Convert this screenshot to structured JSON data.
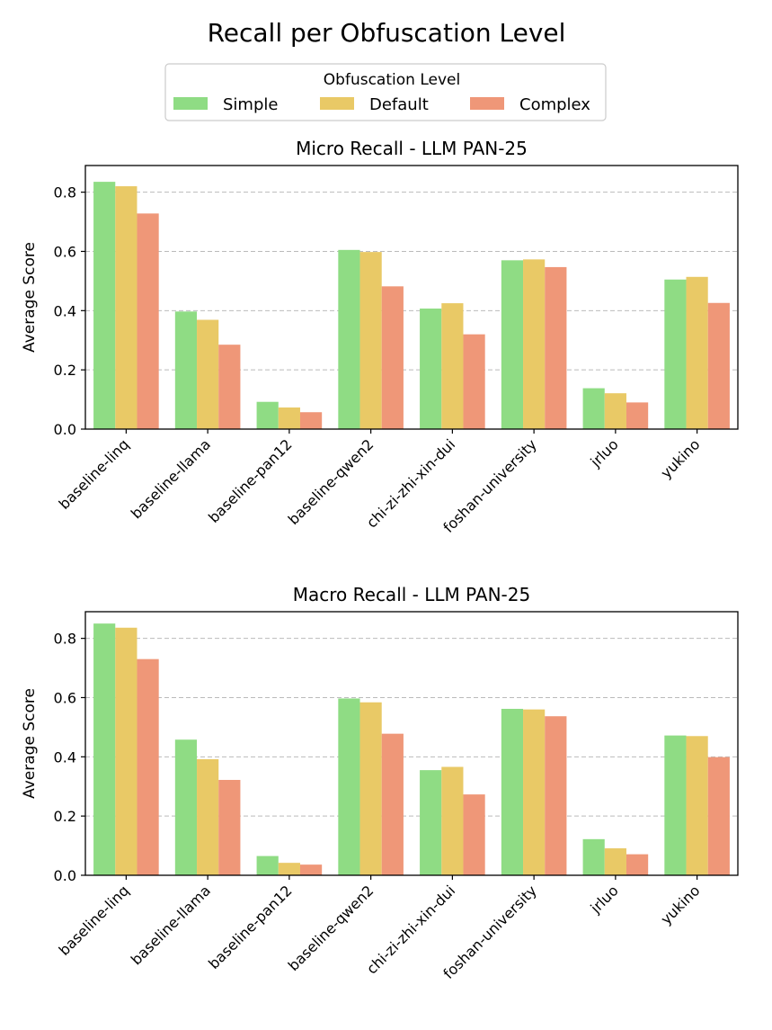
{
  "suptitle": "Recall per Obfuscation Level",
  "legend": {
    "title": "Obfuscation Level",
    "entries": [
      "Simple",
      "Default",
      "Complex"
    ]
  },
  "colors": {
    "Simple": "#8fdc84",
    "Default": "#e9c966",
    "Complex": "#ef9778",
    "grid": "#bbbbbb"
  },
  "chart_data": [
    {
      "type": "bar",
      "title": "Micro Recall - LLM PAN-25",
      "xlabel": "",
      "ylabel": "Average Score",
      "ylim": [
        0,
        0.89
      ],
      "yticks": [
        "0.0",
        "0.2",
        "0.4",
        "0.6",
        "0.8"
      ],
      "grid": "y-dashed",
      "categories": [
        "baseline-linq",
        "baseline-llama",
        "baseline-pan12",
        "baseline-qwen2",
        "chi-zi-zhi-xin-dui",
        "foshan-university",
        "jrluo",
        "yukino"
      ],
      "series": [
        {
          "name": "Simple",
          "values": [
            0.835,
            0.397,
            0.092,
            0.605,
            0.407,
            0.57,
            0.138,
            0.505
          ]
        },
        {
          "name": "Default",
          "values": [
            0.82,
            0.369,
            0.073,
            0.598,
            0.425,
            0.573,
            0.121,
            0.514
          ]
        },
        {
          "name": "Complex",
          "values": [
            0.728,
            0.285,
            0.057,
            0.482,
            0.32,
            0.547,
            0.09,
            0.426
          ]
        }
      ]
    },
    {
      "type": "bar",
      "title": "Macro Recall - LLM PAN-25",
      "xlabel": "",
      "ylabel": "Average Score",
      "ylim": [
        0,
        0.89
      ],
      "yticks": [
        "0.0",
        "0.2",
        "0.4",
        "0.6",
        "0.8"
      ],
      "grid": "y-dashed",
      "categories": [
        "baseline-linq",
        "baseline-llama",
        "baseline-pan12",
        "baseline-qwen2",
        "chi-zi-zhi-xin-dui",
        "foshan-university",
        "jrluo",
        "yukino"
      ],
      "series": [
        {
          "name": "Simple",
          "values": [
            0.85,
            0.458,
            0.065,
            0.597,
            0.355,
            0.562,
            0.122,
            0.472
          ]
        },
        {
          "name": "Default",
          "values": [
            0.836,
            0.392,
            0.042,
            0.584,
            0.366,
            0.56,
            0.091,
            0.47
          ]
        },
        {
          "name": "Complex",
          "values": [
            0.73,
            0.322,
            0.036,
            0.478,
            0.273,
            0.537,
            0.071,
            0.399
          ]
        }
      ]
    }
  ]
}
